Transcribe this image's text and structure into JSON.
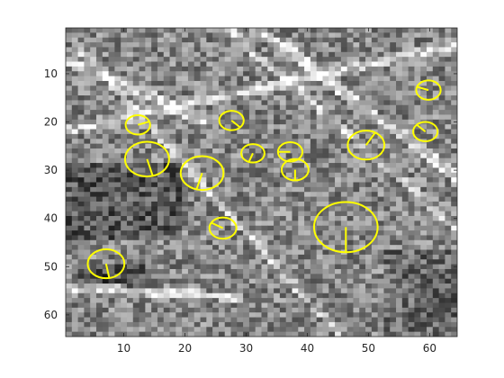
{
  "image_panel": {
    "description_kind": "grayscale-pixel-image-with-feature-overlays",
    "grid": {
      "cols": 64,
      "rows": 64
    },
    "colormap": "gray",
    "overlay_color": "#FFFF00"
  },
  "axes": {
    "xlim": [
      0.5,
      64.5
    ],
    "ylim": [
      0.5,
      64.5
    ],
    "y_direction": "reversed",
    "xticks": [
      10,
      20,
      30,
      40,
      50,
      60
    ],
    "yticks": [
      10,
      20,
      30,
      40,
      50,
      60
    ],
    "xtick_labels": [
      "10",
      "20",
      "30",
      "40",
      "50",
      "60"
    ],
    "ytick_labels": [
      "10",
      "20",
      "30",
      "40",
      "50",
      "60"
    ],
    "grid": false
  },
  "features": [
    {
      "x": 59.8,
      "y": 13.4,
      "r": 2.0,
      "angle_deg": 200
    },
    {
      "x": 12.3,
      "y": 20.6,
      "r": 2.0,
      "angle_deg": 340
    },
    {
      "x": 27.6,
      "y": 19.7,
      "r": 2.0,
      "angle_deg": 45
    },
    {
      "x": 59.3,
      "y": 22.0,
      "r": 2.0,
      "angle_deg": 225
    },
    {
      "x": 13.8,
      "y": 27.7,
      "r": 3.6,
      "angle_deg": 75
    },
    {
      "x": 22.8,
      "y": 30.6,
      "r": 3.5,
      "angle_deg": 105
    },
    {
      "x": 31.1,
      "y": 26.5,
      "r": 1.9,
      "angle_deg": 110
    },
    {
      "x": 37.2,
      "y": 26.2,
      "r": 2.0,
      "angle_deg": 180
    },
    {
      "x": 38.0,
      "y": 29.9,
      "r": 2.2,
      "angle_deg": 90
    },
    {
      "x": 49.6,
      "y": 24.8,
      "r": 3.0,
      "angle_deg": 300
    },
    {
      "x": 26.2,
      "y": 42.0,
      "r": 2.2,
      "angle_deg": 210
    },
    {
      "x": 46.3,
      "y": 41.8,
      "r": 5.2,
      "angle_deg": 90
    },
    {
      "x": 7.1,
      "y": 49.4,
      "r": 3.0,
      "angle_deg": 80
    }
  ]
}
